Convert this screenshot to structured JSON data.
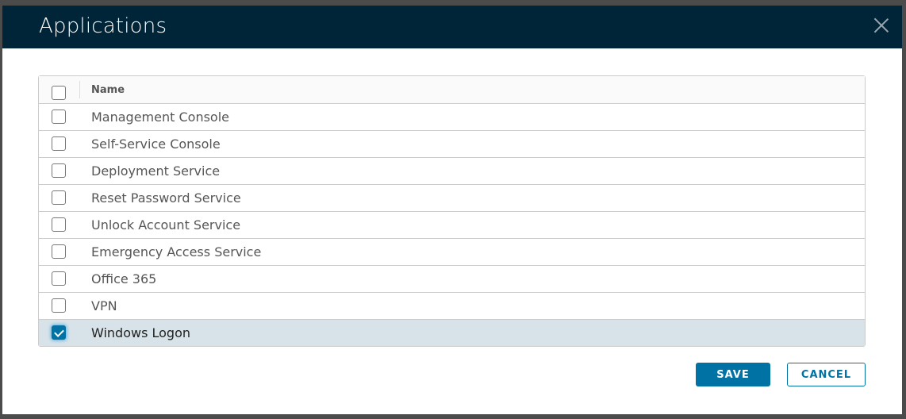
{
  "dialog": {
    "title": "Applications",
    "close_icon": "close-icon",
    "accent_color": "#0072a3",
    "header_color": "#002538"
  },
  "table": {
    "column_name": "Name",
    "rows": [
      {
        "name": "Management Console",
        "checked": false
      },
      {
        "name": "Self-Service Console",
        "checked": false
      },
      {
        "name": "Deployment Service",
        "checked": false
      },
      {
        "name": "Reset Password Service",
        "checked": false
      },
      {
        "name": "Unlock Account Service",
        "checked": false
      },
      {
        "name": "Emergency Access Service",
        "checked": false
      },
      {
        "name": "Office 365",
        "checked": false
      },
      {
        "name": "VPN",
        "checked": false
      },
      {
        "name": "Windows Logon",
        "checked": true
      }
    ]
  },
  "footer": {
    "save_label": "SAVE",
    "cancel_label": "CANCEL"
  }
}
